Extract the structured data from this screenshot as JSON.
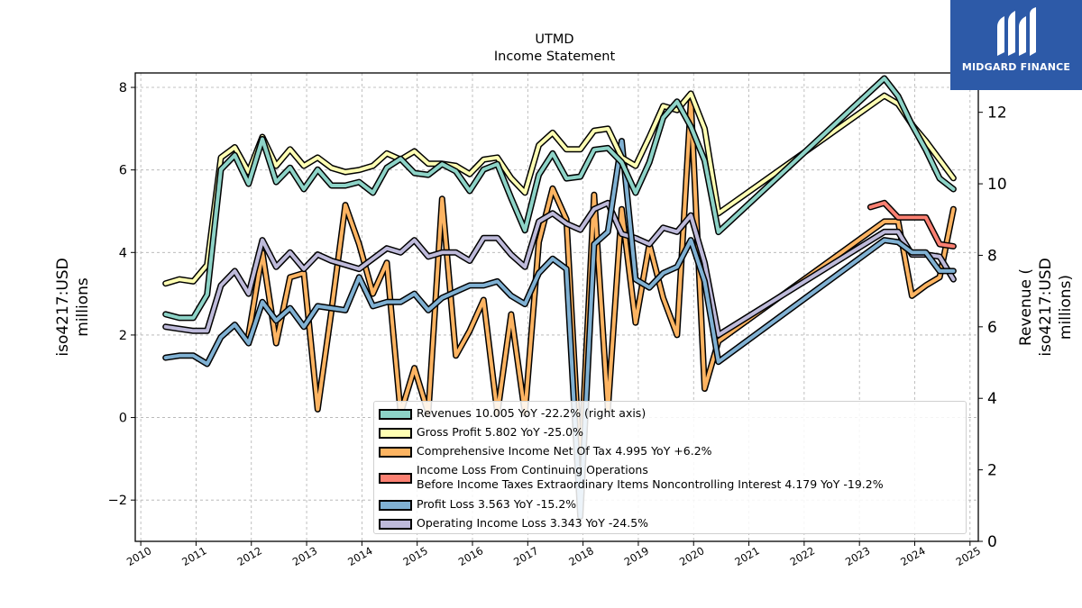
{
  "chart_data": {
    "type": "line",
    "title": "UTMD",
    "subtitle": "Income Statement",
    "ylabel_left": [
      "iso4217:USD",
      "millions"
    ],
    "ylabel_right": [
      "Revenue (",
      "iso4217:USD",
      "millions)"
    ],
    "ylim_left": [
      -3,
      8.35
    ],
    "ylim_right": [
      0,
      13.1
    ],
    "yticks_left": [
      -2,
      0,
      2,
      4,
      6,
      8
    ],
    "yticks_right": [
      0,
      2,
      4,
      6,
      8,
      10,
      12
    ],
    "yticks_left_labels": [
      "−2",
      "0",
      "2",
      "4",
      "6",
      "8"
    ],
    "yticks_right_labels": [
      "0",
      "2",
      "4",
      "6",
      "8",
      "10",
      "12"
    ],
    "xlim": [
      2009.9,
      2025.15
    ],
    "xticks": [
      "2010",
      "2011",
      "2012",
      "2013",
      "2014",
      "2015",
      "2016",
      "2017",
      "2018",
      "2019",
      "2020",
      "2021",
      "2022",
      "2023",
      "2024",
      "2025"
    ],
    "grid": true,
    "legend_position": "lower-right",
    "series": [
      {
        "name": "Revenues",
        "legend": "Revenues  10.005 YoY -22.2% (right axis)",
        "axis": "right",
        "color": "#8dd3c7",
        "x": [
          2010.45,
          2010.7,
          2010.95,
          2011.2,
          2011.45,
          2011.7,
          2011.95,
          2012.2,
          2012.45,
          2012.7,
          2012.95,
          2013.2,
          2013.45,
          2013.7,
          2013.95,
          2014.2,
          2014.45,
          2014.7,
          2014.95,
          2015.2,
          2015.45,
          2015.7,
          2015.95,
          2016.2,
          2016.45,
          2016.7,
          2016.95,
          2017.2,
          2017.45,
          2017.7,
          2017.95,
          2018.2,
          2018.45,
          2018.7,
          2018.95,
          2019.2,
          2019.45,
          2019.7,
          2019.95,
          2020.2,
          2020.45,
          2023.45,
          2023.7,
          2023.95,
          2024.2,
          2024.45,
          2024.7
        ],
        "y": [
          6.35,
          6.25,
          6.25,
          6.9,
          10.4,
          10.8,
          10.0,
          11.25,
          10.05,
          10.45,
          9.85,
          10.4,
          9.95,
          9.95,
          10.05,
          9.75,
          10.45,
          10.7,
          10.3,
          10.25,
          10.55,
          10.35,
          9.8,
          10.4,
          10.55,
          9.6,
          8.7,
          10.25,
          10.85,
          10.15,
          10.2,
          10.95,
          11.0,
          10.6,
          9.75,
          10.6,
          11.85,
          12.3,
          11.6,
          10.65,
          8.65,
          12.95,
          12.45,
          11.65,
          10.95,
          10.15,
          9.85
        ]
      },
      {
        "name": "Gross Profit",
        "legend": "Gross Profit  5.802 YoY -25.0%",
        "axis": "left",
        "color": "#ffffb3",
        "x": [
          2010.45,
          2010.7,
          2010.95,
          2011.2,
          2011.45,
          2011.7,
          2011.95,
          2012.2,
          2012.45,
          2012.7,
          2012.95,
          2013.2,
          2013.45,
          2013.7,
          2013.95,
          2014.2,
          2014.45,
          2014.7,
          2014.95,
          2015.2,
          2015.45,
          2015.7,
          2015.95,
          2016.2,
          2016.45,
          2016.7,
          2016.95,
          2017.2,
          2017.45,
          2017.7,
          2017.95,
          2018.2,
          2018.45,
          2018.7,
          2018.95,
          2019.2,
          2019.45,
          2019.7,
          2019.95,
          2020.2,
          2020.45,
          2023.45,
          2023.7,
          2023.95,
          2024.2,
          2024.45,
          2024.7
        ],
        "y": [
          3.25,
          3.35,
          3.3,
          3.7,
          6.3,
          6.55,
          5.95,
          6.8,
          6.1,
          6.5,
          6.1,
          6.3,
          6.05,
          5.95,
          6.0,
          6.1,
          6.4,
          6.25,
          6.45,
          6.15,
          6.15,
          6.1,
          5.9,
          6.25,
          6.3,
          5.8,
          5.45,
          6.6,
          6.9,
          6.5,
          6.5,
          6.95,
          7.0,
          6.3,
          6.1,
          6.8,
          7.55,
          7.45,
          7.85,
          7.0,
          4.95,
          7.8,
          7.6,
          7.1,
          6.7,
          6.25,
          5.8
        ]
      },
      {
        "name": "Comprehensive Income Net Of Tax",
        "legend": "Comprehensive Income Net Of Tax  4.995 YoY +6.2%",
        "axis": "left",
        "color": "#fdb462",
        "x": [
          2011.95,
          2012.2,
          2012.45,
          2012.7,
          2012.95,
          2013.2,
          2013.45,
          2013.7,
          2013.95,
          2014.2,
          2014.45,
          2014.7,
          2014.95,
          2015.2,
          2015.45,
          2015.7,
          2015.95,
          2016.2,
          2016.45,
          2016.7,
          2016.95,
          2017.2,
          2017.45,
          2017.7,
          2017.95,
          2018.2,
          2018.45,
          2018.7,
          2018.95,
          2019.2,
          2019.45,
          2019.7,
          2019.95,
          2020.2,
          2020.45,
          2023.45,
          2023.7,
          2023.95,
          2024.2,
          2024.45,
          2024.7
        ],
        "y": [
          2.0,
          4.0,
          1.8,
          3.4,
          3.5,
          0.2,
          2.6,
          5.15,
          4.2,
          3.0,
          3.75,
          0.1,
          1.2,
          0.1,
          5.3,
          1.5,
          2.1,
          2.85,
          0.1,
          2.5,
          0.1,
          4.25,
          5.55,
          4.8,
          -1.3,
          5.4,
          0.2,
          5.05,
          2.3,
          4.2,
          2.9,
          2.0,
          7.65,
          0.7,
          1.85,
          4.75,
          4.75,
          2.95,
          3.2,
          3.4,
          5.05
        ]
      },
      {
        "name": "Income Loss From Continuing Operations Before Income Taxes Extraordinary Items Noncontrolling Interest",
        "legend": [
          "Income Loss From Continuing Operations",
          "Before Income Taxes Extraordinary Items Noncontrolling Interest  4.179 YoY -19.2%"
        ],
        "axis": "left",
        "color": "#fb8072",
        "x": [
          2023.2,
          2023.45,
          2023.7,
          2023.95,
          2024.2,
          2024.45,
          2024.7
        ],
        "y": [
          5.1,
          5.2,
          4.85,
          4.85,
          4.85,
          4.2,
          4.15
        ]
      },
      {
        "name": "Profit Loss",
        "legend": "Profit Loss  3.563 YoY -15.2%",
        "axis": "left",
        "color": "#80b1d3",
        "x": [
          2010.45,
          2010.7,
          2010.95,
          2011.2,
          2011.45,
          2011.7,
          2011.95,
          2012.2,
          2012.45,
          2012.7,
          2012.95,
          2013.2,
          2013.45,
          2013.7,
          2013.95,
          2014.2,
          2014.45,
          2014.7,
          2014.95,
          2015.2,
          2015.45,
          2015.7,
          2015.95,
          2016.2,
          2016.45,
          2016.7,
          2016.95,
          2017.2,
          2017.45,
          2017.7,
          2017.95,
          2018.2,
          2018.45,
          2018.7,
          2018.95,
          2019.2,
          2019.45,
          2019.7,
          2019.95,
          2020.2,
          2020.45,
          2023.45,
          2023.7,
          2023.95,
          2024.2,
          2024.45,
          2024.7
        ],
        "y": [
          1.45,
          1.5,
          1.5,
          1.3,
          1.95,
          2.25,
          1.8,
          2.8,
          2.35,
          2.65,
          2.2,
          2.7,
          2.65,
          2.6,
          3.4,
          2.7,
          2.8,
          2.8,
          3.0,
          2.6,
          2.9,
          3.05,
          3.2,
          3.2,
          3.3,
          2.95,
          2.75,
          3.5,
          3.85,
          3.6,
          -2.4,
          4.2,
          4.5,
          6.7,
          3.35,
          3.15,
          3.5,
          3.65,
          4.3,
          3.3,
          1.35,
          4.3,
          4.25,
          4.0,
          4.0,
          3.55,
          3.55
        ]
      },
      {
        "name": "Operating Income Loss",
        "legend": "Operating Income Loss  3.343 YoY -24.5%",
        "axis": "left",
        "color": "#bebada",
        "x": [
          2010.45,
          2010.7,
          2010.95,
          2011.2,
          2011.45,
          2011.7,
          2011.95,
          2012.2,
          2012.45,
          2012.7,
          2012.95,
          2013.2,
          2013.45,
          2013.7,
          2013.95,
          2014.2,
          2014.45,
          2014.7,
          2014.95,
          2015.2,
          2015.45,
          2015.7,
          2015.95,
          2016.2,
          2016.45,
          2016.7,
          2016.95,
          2017.2,
          2017.45,
          2017.7,
          2017.95,
          2018.2,
          2018.45,
          2018.7,
          2018.95,
          2019.2,
          2019.45,
          2019.7,
          2019.95,
          2020.2,
          2020.45,
          2023.45,
          2023.7,
          2023.95,
          2024.2,
          2024.45,
          2024.7
        ],
        "y": [
          2.2,
          2.15,
          2.1,
          2.1,
          3.2,
          3.55,
          3.0,
          4.3,
          3.65,
          4.0,
          3.6,
          3.95,
          3.8,
          3.7,
          3.6,
          3.85,
          4.1,
          4.0,
          4.3,
          3.9,
          4.0,
          4.0,
          3.8,
          4.35,
          4.35,
          3.95,
          3.65,
          4.75,
          4.95,
          4.7,
          4.55,
          5.05,
          5.2,
          4.45,
          4.35,
          4.2,
          4.6,
          4.5,
          4.9,
          3.75,
          2.0,
          4.5,
          4.5,
          3.95,
          3.95,
          3.9,
          3.35
        ]
      }
    ]
  },
  "brand": {
    "name": "MIDGARD FINANCE",
    "logo_color": "#2d5aa8"
  }
}
